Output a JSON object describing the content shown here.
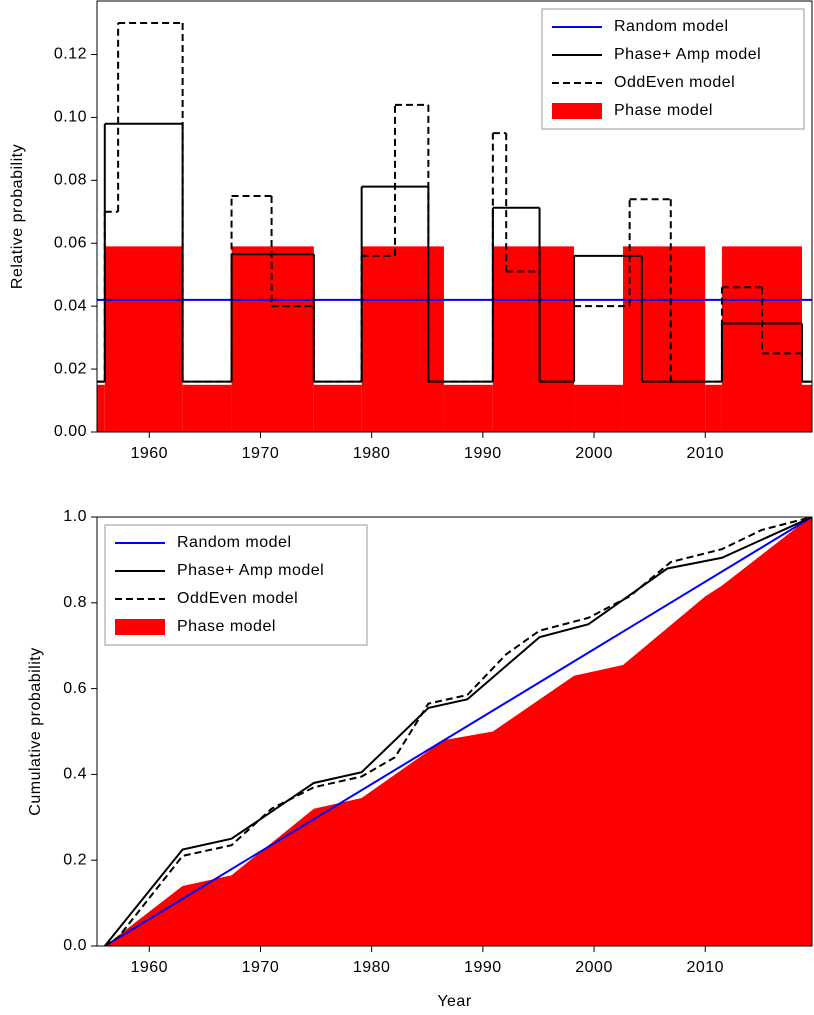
{
  "chart_data": [
    {
      "type": "step",
      "y_label": "Relative probability",
      "xlim": [
        1955.3,
        2019.6
      ],
      "ylim": [
        0,
        0.137
      ],
      "xticks": [
        1960,
        1970,
        1980,
        1990,
        2000,
        2010
      ],
      "yticks": [
        {
          "value": 0,
          "label": "0.00"
        },
        {
          "value": 0.02,
          "label": "0.02"
        },
        {
          "value": 0.04,
          "label": "0.04"
        },
        {
          "value": 0.06,
          "label": "0.06"
        },
        {
          "value": 0.08,
          "label": "0.08"
        },
        {
          "value": 0.1,
          "label": "0.10"
        },
        {
          "value": 0.12,
          "label": "0.12"
        }
      ],
      "legend": "top-right",
      "series": [
        {
          "name": "Phase model",
          "color": "#ff0000",
          "style": "fill",
          "bins": [
            1955.3,
            1956.0,
            1963.0,
            1967.4,
            1974.8,
            1979.1,
            1986.5,
            1990.9,
            1998.2,
            2002.6,
            2010.0,
            2011.5,
            2018.7,
            2019.6
          ],
          "values": [
            0.015,
            0.059,
            0.015,
            0.059,
            0.015,
            0.059,
            0.015,
            0.059,
            0.015,
            0.059,
            0.015,
            0.059,
            0.015
          ]
        },
        {
          "name": "Random model",
          "color": "#0000ff",
          "style": "line",
          "x": [
            1955.3,
            2019.6
          ],
          "values": [
            0.042,
            0.042
          ]
        },
        {
          "name": "Phase+ Amp model",
          "color": "#000000",
          "style": "solid",
          "bins": [
            1955.3,
            1956.0,
            1963.0,
            1967.4,
            1974.8,
            1979.1,
            1985.1,
            1990.9,
            1995.1,
            1998.2,
            2004.3,
            2011.5,
            2018.7,
            2019.6
          ],
          "values": [
            0.016,
            0.098,
            0.016,
            0.0565,
            0.016,
            0.078,
            0.016,
            0.0713,
            0.016,
            0.056,
            0.016,
            0.0345,
            0.016
          ]
        },
        {
          "name": "OddEven model",
          "color": "#000000",
          "style": "dashed",
          "bins": [
            1955.3,
            1956.0,
            1957.2,
            1963.0,
            1967.4,
            1971.0,
            1974.8,
            1979.1,
            1982.1,
            1985.1,
            1990.9,
            1992.1,
            1995.1,
            1998.2,
            2003.2,
            2006.9,
            2011.5,
            2015.1,
            2018.7,
            2019.6
          ],
          "values": [
            0.016,
            0.07,
            0.13,
            0.016,
            0.075,
            0.04,
            0.016,
            0.056,
            0.104,
            0.016,
            0.095,
            0.051,
            0.016,
            0.04,
            0.074,
            0.016,
            0.046,
            0.025,
            0.016
          ]
        }
      ]
    },
    {
      "type": "line",
      "x_label": "Year",
      "y_label": "Cumulative probability",
      "xlim": [
        1955.3,
        2019.6
      ],
      "ylim": [
        0,
        1
      ],
      "xticks": [
        1960,
        1970,
        1980,
        1990,
        2000,
        2010
      ],
      "yticks": [
        {
          "value": 0,
          "label": "0.0"
        },
        {
          "value": 0.2,
          "label": "0.2"
        },
        {
          "value": 0.4,
          "label": "0.4"
        },
        {
          "value": 0.6,
          "label": "0.6"
        },
        {
          "value": 0.8,
          "label": "0.8"
        },
        {
          "value": 1,
          "label": "1.0"
        }
      ],
      "legend": "top-left",
      "series": [
        {
          "name": "Phase model",
          "color": "#ff0000",
          "style": "fill",
          "x": [
            1956.0,
            1963.0,
            1967.4,
            1974.8,
            1979.1,
            1986.5,
            1990.9,
            1998.2,
            2002.6,
            2010.0,
            2011.5,
            2018.7,
            2019.6
          ],
          "values": [
            0,
            0.14,
            0.165,
            0.32,
            0.345,
            0.48,
            0.5,
            0.63,
            0.655,
            0.815,
            0.84,
            0.985,
            1.0
          ]
        },
        {
          "name": "Random model",
          "color": "#0000ff",
          "style": "line",
          "x": [
            1956.0,
            2019.6
          ],
          "values": [
            0,
            1
          ]
        },
        {
          "name": "Phase+ Amp model",
          "color": "#000000",
          "style": "solid",
          "x": [
            1956.0,
            1963.0,
            1967.4,
            1974.8,
            1979.1,
            1985.1,
            1988.6,
            1995.1,
            1999.5,
            2006.6,
            2011.5,
            2019.6
          ],
          "values": [
            0,
            0.225,
            0.25,
            0.38,
            0.405,
            0.555,
            0.575,
            0.72,
            0.75,
            0.88,
            0.905,
            1.0
          ]
        },
        {
          "name": "OddEven model",
          "color": "#000000",
          "style": "dashed",
          "x": [
            1956.0,
            1957.2,
            1963.0,
            1967.4,
            1971.0,
            1974.8,
            1979.1,
            1982.1,
            1985.1,
            1988.6,
            1992.1,
            1995.1,
            1999.5,
            2003.2,
            2006.9,
            2011.5,
            2015.1,
            2019.6
          ],
          "values": [
            0,
            0.02,
            0.21,
            0.235,
            0.32,
            0.37,
            0.395,
            0.44,
            0.565,
            0.585,
            0.68,
            0.735,
            0.765,
            0.815,
            0.895,
            0.925,
            0.97,
            1.0
          ]
        }
      ]
    }
  ]
}
